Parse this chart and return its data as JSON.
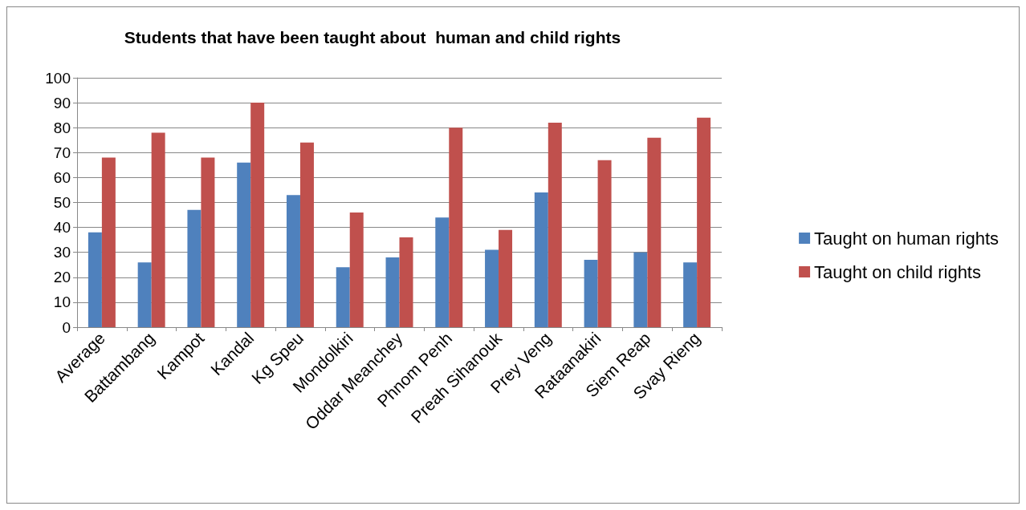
{
  "chart_data": {
    "type": "bar",
    "title": "Students that have been taught about  human and child rights",
    "categories": [
      "Average",
      "Battambang",
      "Kampot",
      "Kandal",
      "Kg Speu",
      "Mondolkiri",
      "Oddar Meanchey",
      "Phnom Penh",
      "Preah Sihanouk",
      "Prey Veng",
      "Rataanakiri",
      "Siem Reap",
      "Svay Rieng"
    ],
    "series": [
      {
        "name": "Taught on human rights",
        "color": "#4f81bd",
        "values": [
          38,
          26,
          47,
          66,
          53,
          24,
          28,
          44,
          31,
          54,
          27,
          30,
          26
        ]
      },
      {
        "name": "Taught on child rights",
        "color": "#c0504d",
        "values": [
          68,
          78,
          68,
          90,
          74,
          46,
          36,
          80,
          39,
          82,
          67,
          76,
          84
        ]
      }
    ],
    "ylim": [
      0,
      100
    ],
    "yticks": [
      0,
      10,
      20,
      30,
      40,
      50,
      60,
      70,
      80,
      90,
      100
    ],
    "grid": "y",
    "legend": "right"
  }
}
